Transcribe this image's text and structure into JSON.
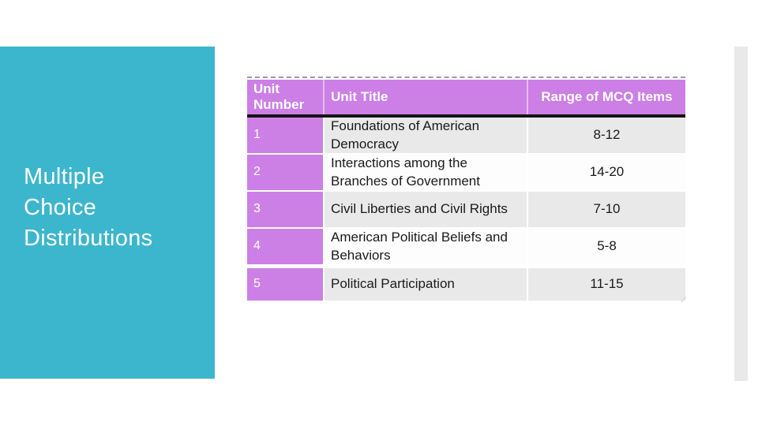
{
  "slide": {
    "title": "Multiple Choice Distributions"
  },
  "colors": {
    "accent_teal": "#3CB6CD",
    "table_purple": "#CC7FE5",
    "row_gray": "#E9E9E9",
    "row_white": "#FDFDFD",
    "body_text": "#1A1A1A",
    "divider_black": "#141414",
    "side_bar_gray": "#E9E9E9"
  },
  "table": {
    "headers": [
      "Unit Number",
      "Unit Title",
      "Range of MCQ Items"
    ],
    "rows": [
      {
        "unit": "1",
        "title": "Foundations of American Democracy",
        "range": "8-12"
      },
      {
        "unit": "2",
        "title": "Interactions among the Branches of Government",
        "range": "14-20"
      },
      {
        "unit": "3",
        "title": "Civil Liberties and Civil Rights",
        "range": "7-10"
      },
      {
        "unit": "4",
        "title": "American Political Beliefs and Behaviors",
        "range": "5-8"
      },
      {
        "unit": "5",
        "title": "Political Participation",
        "range": "11-15"
      }
    ]
  }
}
